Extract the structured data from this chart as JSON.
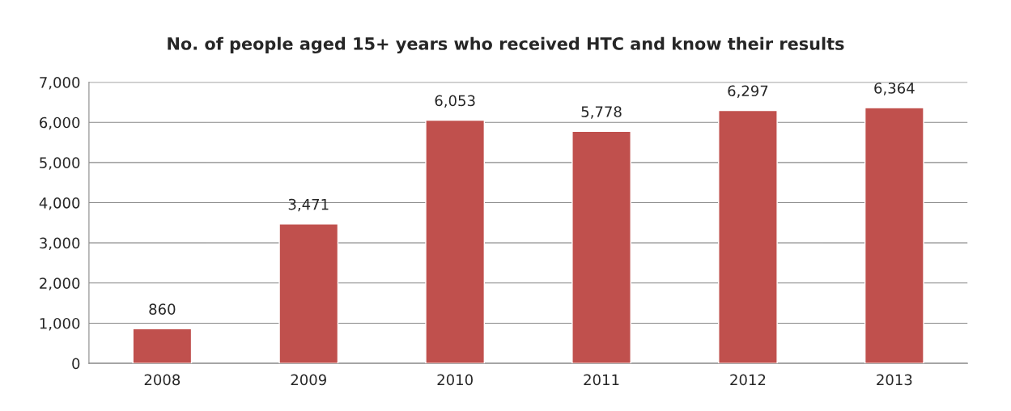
{
  "chart_data": {
    "type": "bar",
    "title": "No. of people aged 15+ years who received HTC and know their results",
    "categories": [
      "2008",
      "2009",
      "2010",
      "2011",
      "2012",
      "2013"
    ],
    "values": [
      860,
      3471,
      6053,
      5778,
      6297,
      6364
    ],
    "value_labels": [
      "860",
      "3,471",
      "6,053",
      "5,778",
      "6,297",
      "6,364"
    ],
    "color": "#c0504d",
    "ylim": [
      0,
      7000
    ],
    "yticks": [
      0,
      {
        "value": 1000,
        "label": "1,000"
      },
      {
        "value": 2000,
        "label": "2,000"
      },
      {
        "value": 3000,
        "label": "3,000"
      },
      {
        "value": 4000,
        "label": "4,000"
      },
      {
        "value": 5000,
        "label": "5,000"
      },
      {
        "value": 6000,
        "label": "6,000"
      },
      {
        "value": 7000,
        "label": "7,000"
      }
    ],
    "grid": "y",
    "legend": false
  }
}
